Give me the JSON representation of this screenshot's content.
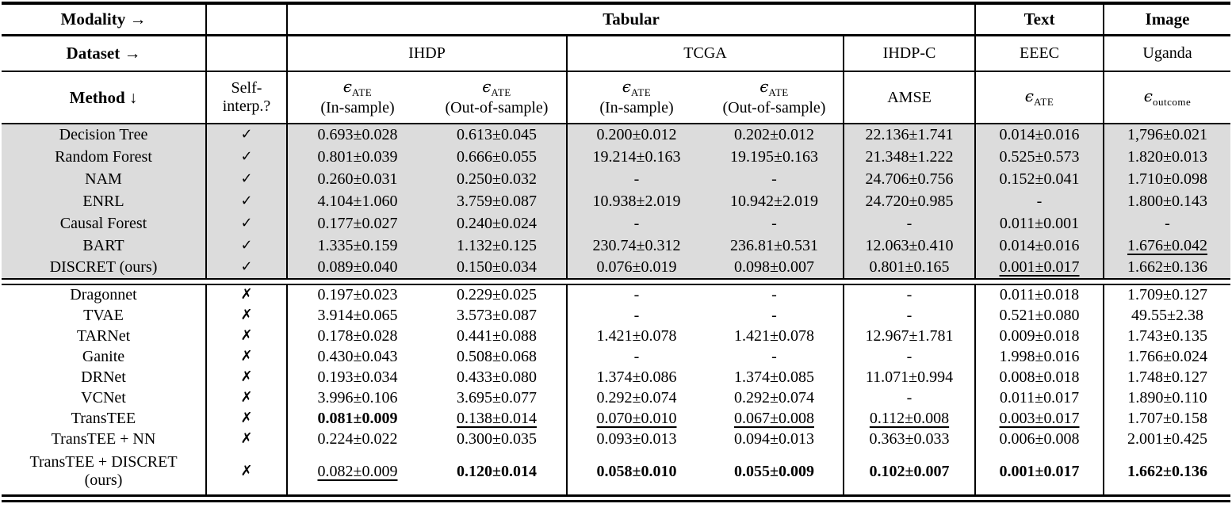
{
  "header": {
    "modality_label": "Modality →",
    "dataset_label": "Dataset →",
    "method_label": "Method ↓",
    "self_interp_label": "Self-\ninterp.?",
    "modality_groups": {
      "tabular": "Tabular",
      "text": "Text",
      "image": "Image"
    },
    "datasets": {
      "ihdp": "IHDP",
      "tcga": "TCGA",
      "ihdpc": "IHDP-C",
      "eeec": "EEEC",
      "uganda": "Uganda"
    },
    "metrics": {
      "ihdp_in": {
        "eps": "ϵ",
        "sub": "ATE",
        "note": "(In-sample)"
      },
      "ihdp_out": {
        "eps": "ϵ",
        "sub": "ATE",
        "note": "(Out-of-sample)"
      },
      "tcga_in": {
        "eps": "ϵ",
        "sub": "ATE",
        "note": "(In-sample)"
      },
      "tcga_out": {
        "eps": "ϵ",
        "sub": "ATE",
        "note": "(Out-of-sample)"
      },
      "amse": {
        "text": "AMSE"
      },
      "eeec": {
        "eps": "ϵ",
        "sub": "ATE",
        "note": ""
      },
      "uganda": {
        "eps": "ϵ",
        "sub": "outcome",
        "note": ""
      }
    }
  },
  "marks": {
    "yes": "✓",
    "no": "✗"
  },
  "colors": {
    "shaded_row_bg": "#dcdcdc",
    "rule": "#000000",
    "text": "#000000"
  },
  "groups": [
    {
      "shaded": true,
      "rows": [
        {
          "method": "Decision Tree",
          "interp": "yes",
          "cells": [
            "0.693±0.028",
            "0.613±0.045",
            "0.200±0.012",
            "0.202±0.012",
            "22.136±1.741",
            "0.014±0.016",
            "1,796±0.021"
          ]
        },
        {
          "method": "Random Forest",
          "interp": "yes",
          "cells": [
            "0.801±0.039",
            "0.666±0.055",
            "19.214±0.163",
            "19.195±0.163",
            "21.348±1.222",
            "0.525±0.573",
            "1.820±0.013"
          ]
        },
        {
          "method": "NAM",
          "interp": "yes",
          "cells": [
            "0.260±0.031",
            "0.250±0.032",
            "-",
            "-",
            "24.706±0.756",
            "0.152±0.041",
            "1.710±0.098"
          ]
        },
        {
          "method": "ENRL",
          "interp": "yes",
          "cells": [
            "4.104±1.060",
            "3.759±0.087",
            "10.938±2.019",
            "10.942±2.019",
            "24.720±0.985",
            "-",
            "1.800±0.143"
          ]
        },
        {
          "method": "Causal Forest",
          "interp": "yes",
          "cells": [
            "0.177±0.027",
            "0.240±0.024",
            "-",
            "-",
            "-",
            "0.011±0.001",
            "-"
          ]
        },
        {
          "method": "BART",
          "interp": "yes",
          "cells": [
            "1.335±0.159",
            "1.132±0.125",
            "230.74±0.312",
            "236.81±0.531",
            "12.063±0.410",
            "0.014±0.016",
            [
              "1.676±0.042",
              "u"
            ]
          ]
        },
        {
          "method": "DISCRET (ours)",
          "interp": "yes",
          "cells": [
            "0.089±0.040",
            "0.150±0.034",
            "0.076±0.019",
            "0.098±0.007",
            "0.801±0.165",
            [
              "0.001±0.017",
              "u"
            ],
            "1.662±0.136"
          ]
        }
      ]
    },
    {
      "shaded": false,
      "rows": [
        {
          "method": "Dragonnet",
          "interp": "no",
          "cells": [
            "0.197±0.023",
            "0.229±0.025",
            "-",
            "-",
            "-",
            "0.011±0.018",
            "1.709±0.127"
          ]
        },
        {
          "method": "TVAE",
          "interp": "no",
          "cells": [
            "3.914±0.065",
            "3.573±0.087",
            "-",
            "-",
            "-",
            "0.521±0.080",
            "49.55±2.38"
          ]
        },
        {
          "method": "TARNet",
          "interp": "no",
          "cells": [
            "0.178±0.028",
            "0.441±0.088",
            "1.421±0.078",
            "1.421±0.078",
            "12.967±1.781",
            "0.009±0.018",
            "1.743±0.135"
          ]
        },
        {
          "method": "Ganite",
          "interp": "no",
          "cells": [
            "0.430±0.043",
            "0.508±0.068",
            "-",
            "-",
            "-",
            "1.998±0.016",
            "1.766±0.024"
          ]
        },
        {
          "method": "DRNet",
          "interp": "no",
          "cells": [
            "0.193±0.034",
            "0.433±0.080",
            "1.374±0.086",
            "1.374±0.085",
            "11.071±0.994",
            "0.008±0.018",
            "1.748±0.127"
          ]
        },
        {
          "method": "VCNet",
          "interp": "no",
          "cells": [
            "3.996±0.106",
            "3.695±0.077",
            "0.292±0.074",
            "0.292±0.074",
            "-",
            "0.011±0.017",
            "1.890±0.110"
          ]
        },
        {
          "method": "TransTEE",
          "interp": "no",
          "cells": [
            [
              "0.081±0.009",
              "b"
            ],
            [
              "0.138±0.014",
              "u"
            ],
            [
              "0.070±0.010",
              "u"
            ],
            [
              "0.067±0.008",
              "u"
            ],
            [
              "0.112±0.008",
              "u"
            ],
            [
              "0.003±0.017",
              "u"
            ],
            "1.707±0.158"
          ]
        },
        {
          "method": "TransTEE + NN",
          "interp": "no",
          "cells": [
            "0.224±0.022",
            "0.300±0.035",
            "0.093±0.013",
            "0.094±0.013",
            "0.363±0.033",
            "0.006±0.008",
            "2.001±0.425"
          ]
        },
        {
          "method": "TransTEE + DISCRET\n(ours)",
          "interp": "no",
          "tall": true,
          "cells": [
            [
              "0.082±0.009",
              "u"
            ],
            [
              "0.120±0.014",
              "b"
            ],
            [
              "0.058±0.010",
              "b"
            ],
            [
              "0.055±0.009",
              "b"
            ],
            [
              "0.102±0.007",
              "b"
            ],
            [
              "0.001±0.017",
              "b"
            ],
            [
              "1.662±0.136",
              "b"
            ]
          ]
        }
      ]
    }
  ]
}
